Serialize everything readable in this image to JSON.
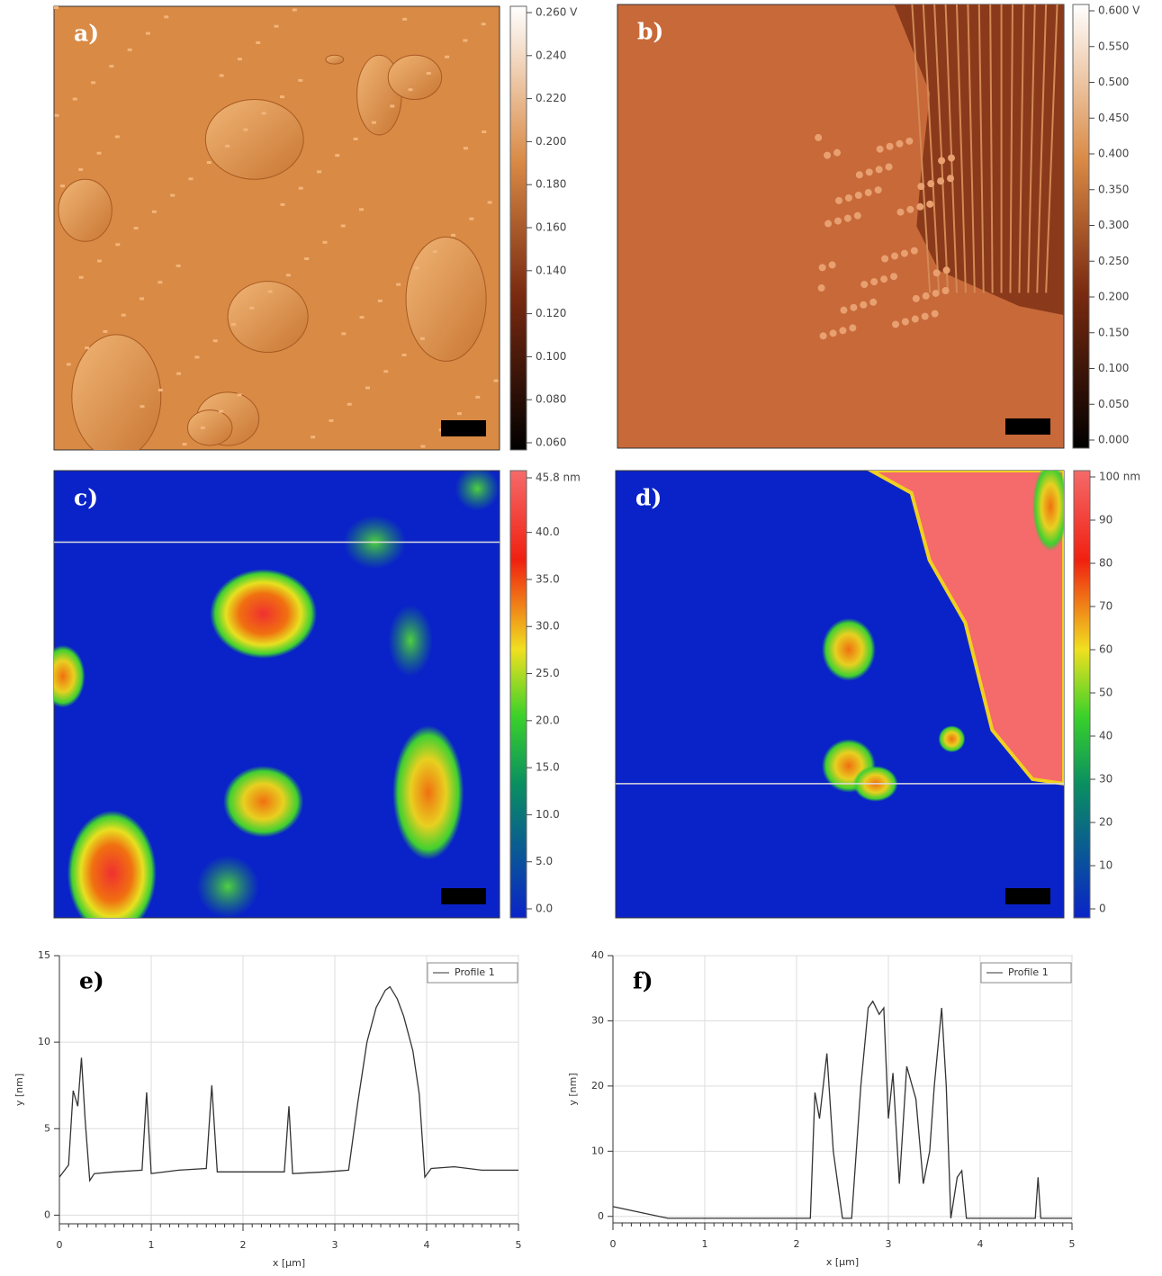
{
  "chart_data": [
    {
      "type": "image",
      "label": "a)",
      "yticks": [
        {
          "value": 0.26,
          "label": "0.260 V"
        },
        {
          "value": 0.24,
          "label": "0.240"
        },
        {
          "value": 0.22,
          "label": "0.220"
        },
        {
          "value": 0.2,
          "label": "0.200"
        },
        {
          "value": 0.18,
          "label": "0.180"
        },
        {
          "value": 0.16,
          "label": "0.160"
        },
        {
          "value": 0.14,
          "label": "0.140"
        },
        {
          "value": 0.12,
          "label": "0.120"
        },
        {
          "value": 0.1,
          "label": "0.100"
        },
        {
          "value": 0.08,
          "label": "0.080"
        },
        {
          "value": 0.06,
          "label": "0.060"
        }
      ],
      "ylim": [
        0.06,
        0.26
      ]
    },
    {
      "type": "image",
      "label": "b)",
      "yticks": [
        {
          "value": 0.6,
          "label": "0.600 V"
        },
        {
          "value": 0.55,
          "label": "0.550"
        },
        {
          "value": 0.5,
          "label": "0.500"
        },
        {
          "value": 0.45,
          "label": "0.450"
        },
        {
          "value": 0.4,
          "label": "0.400"
        },
        {
          "value": 0.35,
          "label": "0.350"
        },
        {
          "value": 0.3,
          "label": "0.300"
        },
        {
          "value": 0.25,
          "label": "0.250"
        },
        {
          "value": 0.2,
          "label": "0.200"
        },
        {
          "value": 0.15,
          "label": "0.150"
        },
        {
          "value": 0.1,
          "label": "0.100"
        },
        {
          "value": 0.05,
          "label": "0.050"
        },
        {
          "value": 0,
          "label": "0.000"
        }
      ],
      "ylim": [
        0,
        0.6
      ]
    },
    {
      "type": "image",
      "label": "c)",
      "yticks": [
        {
          "value": 45.8,
          "label": "45.8 nm"
        },
        {
          "value": 40,
          "label": "40.0"
        },
        {
          "value": 35,
          "label": "35.0"
        },
        {
          "value": 30,
          "label": "30.0"
        },
        {
          "value": 25,
          "label": "25.0"
        },
        {
          "value": 20,
          "label": "20.0"
        },
        {
          "value": 15,
          "label": "15.0"
        },
        {
          "value": 10,
          "label": "10.0"
        },
        {
          "value": 5,
          "label": "5.0"
        },
        {
          "value": 0,
          "label": "0.0"
        }
      ],
      "ylim": [
        0,
        45.8
      ]
    },
    {
      "type": "image",
      "label": "d)",
      "yticks": [
        {
          "value": 100,
          "label": "100 nm"
        },
        90,
        80,
        70,
        60,
        50,
        40,
        30,
        20,
        10,
        0
      ],
      "ylim": [
        0,
        100
      ]
    },
    {
      "type": "line",
      "label": "e)",
      "x_label": "x [µm]",
      "y_label": "y [nm]",
      "xlim": [
        0,
        5
      ],
      "ylim": [
        -0.5,
        15
      ],
      "xticks": [
        0,
        1,
        2,
        3,
        4,
        5
      ],
      "yticks": [
        0,
        5,
        10,
        15
      ],
      "grid": true,
      "x": [
        0,
        0.1,
        0.15,
        0.2,
        0.24,
        0.28,
        0.33,
        0.38,
        0.6,
        0.9,
        0.95,
        1.0,
        1.3,
        1.6,
        1.66,
        1.72,
        2.0,
        2.45,
        2.5,
        2.54,
        2.9,
        3.15,
        3.25,
        3.35,
        3.45,
        3.55,
        3.6,
        3.68,
        3.75,
        3.85,
        3.92,
        3.98,
        4.05,
        4.3,
        4.6,
        5
      ],
      "series": [
        {
          "name": "Profile 1",
          "color": "#333333",
          "values": [
            2.2,
            2.9,
            7.2,
            6.3,
            9.1,
            5.5,
            2.0,
            2.4,
            2.5,
            2.6,
            7.1,
            2.4,
            2.6,
            2.7,
            7.5,
            2.5,
            2.5,
            2.5,
            6.3,
            2.4,
            2.5,
            2.6,
            6.5,
            10,
            12,
            13,
            13.2,
            12.5,
            11.5,
            9.5,
            7,
            2.2,
            2.7,
            2.8,
            2.6,
            2.6
          ]
        }
      ]
    },
    {
      "type": "line",
      "label": "f)",
      "x_label": "x [µm]",
      "y_label": "y [nm]",
      "xlim": [
        0,
        5
      ],
      "ylim": [
        -1,
        40
      ],
      "xticks": [
        0,
        1,
        2,
        3,
        4,
        5
      ],
      "yticks": [
        0,
        10,
        20,
        30,
        40
      ],
      "grid": true,
      "x": [
        0,
        0.3,
        0.6,
        1.5,
        2.15,
        2.2,
        2.25,
        2.33,
        2.4,
        2.5,
        2.6,
        2.7,
        2.78,
        2.83,
        2.9,
        2.95,
        3.0,
        3.05,
        3.12,
        3.2,
        3.3,
        3.38,
        3.45,
        3.5,
        3.58,
        3.63,
        3.68,
        3.75,
        3.8,
        3.85,
        4.6,
        4.63,
        4.66,
        5
      ],
      "series": [
        {
          "name": "Profile 1",
          "color": "#333333",
          "values": [
            1.5,
            0.6,
            -0.3,
            -0.3,
            -0.3,
            19,
            15,
            25,
            10,
            -0.3,
            -0.3,
            20,
            32,
            33,
            31,
            32,
            15,
            22,
            5,
            23,
            18,
            5,
            10,
            20,
            32,
            20,
            -0.3,
            6,
            7,
            -0.3,
            -0.3,
            6,
            -0.3,
            -0.3
          ]
        }
      ]
    }
  ]
}
